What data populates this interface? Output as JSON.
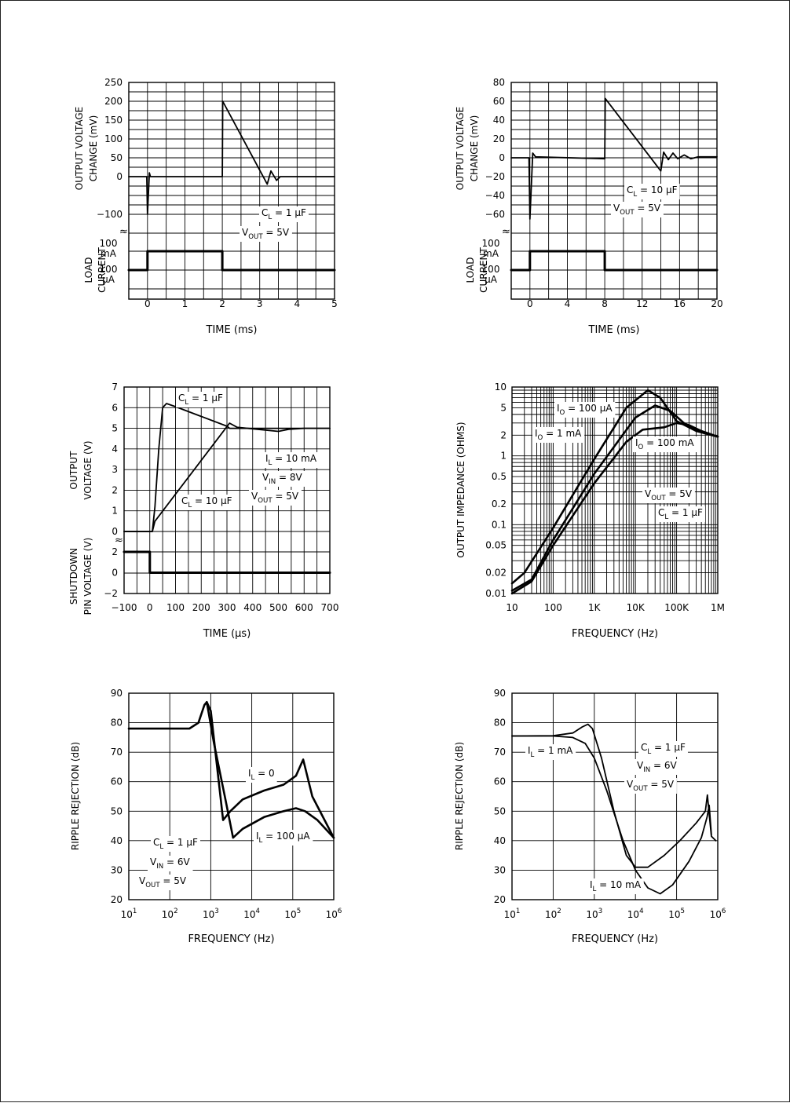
{
  "chart_data": [
    {
      "type": "line",
      "title": "",
      "xlabel": "TIME (ms)",
      "ylabel": "OUTPUT VOLTAGE CHANGE (mV)",
      "ylim": [
        -100,
        250
      ],
      "xlim": [
        -0.5,
        5
      ],
      "x_ticks": [
        "0",
        "1",
        "2",
        "3",
        "4",
        "5"
      ],
      "y_ticks": [
        "250",
        "200",
        "150",
        "100",
        "50",
        "0",
        "−100"
      ],
      "sub_label": "LOAD CURRENT",
      "sub_ticks": [
        "100 mA",
        "100 μA"
      ],
      "annotations": [
        "C_L = 1 μF",
        "V_OUT = 5V"
      ],
      "series": [
        {
          "values": [
            [
              -0.5,
              0
            ],
            [
              -0.02,
              0
            ],
            [
              0,
              -100
            ],
            [
              0.05,
              10
            ],
            [
              0.08,
              0
            ],
            [
              2,
              0
            ],
            [
              2.01,
              200
            ],
            [
              3.2,
              -20
            ],
            [
              3.3,
              15
            ],
            [
              3.45,
              -10
            ],
            [
              3.55,
              0
            ],
            [
              5,
              0
            ]
          ]
        },
        {
          "values": [
            [
              -0.5,
              0
            ],
            [
              0,
              0
            ],
            [
              0,
              1
            ],
            [
              2,
              1
            ],
            [
              2,
              0
            ],
            [
              5,
              0
            ]
          ]
        }
      ]
    },
    {
      "type": "line",
      "title": "",
      "xlabel": "TIME (ms)",
      "ylabel": "OUTPUT VOLTAGE CHANGE (mV)",
      "ylim": [
        -60,
        80
      ],
      "xlim": [
        -2,
        20
      ],
      "x_ticks": [
        "0",
        "4",
        "8",
        "12",
        "16",
        "20"
      ],
      "y_ticks": [
        "80",
        "60",
        "40",
        "20",
        "0",
        "−20",
        "−40",
        "−60"
      ],
      "sub_label": "LOAD CURRENT",
      "sub_ticks": [
        "100 mA",
        "100 μA"
      ],
      "annotations": [
        "C_L = 10 μF",
        "V_OUT = 5V"
      ],
      "series": [
        {
          "values": [
            [
              -2,
              0
            ],
            [
              -0.1,
              0
            ],
            [
              0,
              -65
            ],
            [
              0.3,
              5
            ],
            [
              0.6,
              1
            ],
            [
              8,
              -1
            ],
            [
              8.05,
              63
            ],
            [
              14,
              -14
            ],
            [
              14.3,
              6
            ],
            [
              14.8,
              -2
            ],
            [
              15.3,
              5
            ],
            [
              15.8,
              -1
            ],
            [
              16.5,
              3
            ],
            [
              17.2,
              -1
            ],
            [
              18,
              1
            ],
            [
              20,
              1
            ]
          ]
        },
        {
          "values": [
            [
              -2,
              0
            ],
            [
              0,
              0
            ],
            [
              0,
              1
            ],
            [
              8,
              1
            ],
            [
              8,
              0
            ],
            [
              20,
              0
            ]
          ]
        }
      ]
    },
    {
      "type": "line",
      "title": "",
      "xlabel": "TIME (μs)",
      "ylabel": "OUTPUT VOLTAGE (V)",
      "ylim": [
        0,
        7
      ],
      "xlim": [
        -100,
        700
      ],
      "x_ticks": [
        "−100",
        "0",
        "100",
        "200",
        "300",
        "400",
        "500",
        "600",
        "700"
      ],
      "y_ticks": [
        "7",
        "6",
        "5",
        "4",
        "3",
        "2",
        "1",
        "0"
      ],
      "sub_label": "SHUTDOWN PIN VOLTAGE (V)",
      "sub_ticks": [
        "2",
        "0",
        "−2"
      ],
      "annotations": [
        "C_L = 1 μF",
        "C_L = 10 μF",
        "I_L = 10 mA",
        "V_IN = 8V",
        "V_OUT = 5V"
      ],
      "series": [
        {
          "name": "C_L = 1 μF",
          "values": [
            [
              -100,
              0
            ],
            [
              10,
              0
            ],
            [
              20,
              1.2
            ],
            [
              35,
              4
            ],
            [
              50,
              6
            ],
            [
              65,
              6.2
            ],
            [
              100,
              6.05
            ],
            [
              300,
              5.1
            ],
            [
              310,
              5.0
            ],
            [
              700,
              5.0
            ]
          ]
        },
        {
          "name": "C_L = 10 μF",
          "values": [
            [
              -100,
              0
            ],
            [
              10,
              0
            ],
            [
              20,
              0.5
            ],
            [
              280,
              4.75
            ],
            [
              310,
              5.25
            ],
            [
              340,
              5.05
            ],
            [
              500,
              4.85
            ],
            [
              540,
              4.95
            ],
            [
              600,
              5.0
            ],
            [
              700,
              5.0
            ]
          ]
        },
        {
          "name": "SHUTDOWN",
          "values": [
            [
              -100,
              2
            ],
            [
              0,
              2
            ],
            [
              0,
              0
            ],
            [
              700,
              0
            ]
          ]
        }
      ]
    },
    {
      "type": "line",
      "title": "",
      "xlabel": "FREQUENCY (Hz)",
      "ylabel": "OUTPUT IMPEDANCE (OHMS)",
      "log_x": true,
      "log_y": true,
      "xlim": [
        10,
        1000000
      ],
      "ylim": [
        0.01,
        10
      ],
      "x_ticks": [
        "10",
        "100",
        "1K",
        "10K",
        "100K",
        "1M"
      ],
      "y_ticks": [
        "10",
        "5",
        "2",
        "1",
        "0.5",
        "0.2",
        "0.1",
        "0.05",
        "0.02",
        "0.01"
      ],
      "annotations": [
        "I_O = 100 μA",
        "I_O = 1 mA",
        "I_O = 100 mA",
        "V_OUT = 5V",
        "C_L = 1 μF"
      ],
      "series": [
        {
          "name": "I_O = 100 μA",
          "values": [
            [
              10,
              0.014
            ],
            [
              20,
              0.02
            ],
            [
              100,
              0.09
            ],
            [
              1000,
              0.9
            ],
            [
              6000,
              5
            ],
            [
              20000,
              9
            ],
            [
              40000,
              7
            ],
            [
              100000,
              3.2
            ],
            [
              300000,
              2.3
            ],
            [
              1000000,
              1.9
            ]
          ]
        },
        {
          "name": "I_O = 1 mA",
          "values": [
            [
              10,
              0.011
            ],
            [
              30,
              0.016
            ],
            [
              100,
              0.06
            ],
            [
              1000,
              0.55
            ],
            [
              10000,
              3.6
            ],
            [
              30000,
              5.4
            ],
            [
              70000,
              4.5
            ],
            [
              150000,
              3
            ],
            [
              400000,
              2.2
            ],
            [
              1000000,
              1.9
            ]
          ]
        },
        {
          "name": "I_O = 100 mA",
          "values": [
            [
              10,
              0.01
            ],
            [
              30,
              0.015
            ],
            [
              100,
              0.05
            ],
            [
              1000,
              0.4
            ],
            [
              6000,
              1.6
            ],
            [
              15000,
              2.4
            ],
            [
              50000,
              2.6
            ],
            [
              100000,
              3.0
            ],
            [
              200000,
              2.8
            ],
            [
              400000,
              2.3
            ],
            [
              1000000,
              1.9
            ]
          ]
        }
      ]
    },
    {
      "type": "line",
      "title": "",
      "xlabel": "FREQUENCY (Hz)",
      "ylabel": "RIPPLE REJECTION (dB)",
      "log_x": true,
      "xlim": [
        10,
        1000000
      ],
      "ylim": [
        20,
        90
      ],
      "x_ticks": [
        "10^1",
        "10^2",
        "10^3",
        "10^4",
        "10^5",
        "10^6"
      ],
      "y_ticks": [
        "90",
        "80",
        "70",
        "60",
        "50",
        "40",
        "30",
        "20"
      ],
      "annotations": [
        "I_L = 0",
        "I_L = 100 μA",
        "C_L = 1 μF",
        "V_IN = 6V",
        "V_OUT = 5V"
      ],
      "series": [
        {
          "name": "I_L = 0",
          "values": [
            [
              10,
              78
            ],
            [
              300,
              78
            ],
            [
              500,
              80
            ],
            [
              700,
              86
            ],
            [
              800,
              87
            ],
            [
              1000,
              84
            ],
            [
              2000,
              47
            ],
            [
              3000,
              50
            ],
            [
              6000,
              54
            ],
            [
              20000,
              57
            ],
            [
              60000,
              59
            ],
            [
              120000,
              62
            ],
            [
              180000,
              67.5
            ],
            [
              300000,
              55
            ],
            [
              1000000,
              41
            ]
          ]
        },
        {
          "name": "I_L = 100 μA",
          "values": [
            [
              800,
              87
            ],
            [
              1200,
              73
            ],
            [
              2200,
              55
            ],
            [
              3500,
              41
            ],
            [
              6000,
              44
            ],
            [
              20000,
              48
            ],
            [
              60000,
              50
            ],
            [
              120000,
              51
            ],
            [
              200000,
              50
            ],
            [
              400000,
              47
            ],
            [
              1000000,
              41
            ]
          ]
        }
      ]
    },
    {
      "type": "line",
      "title": "",
      "xlabel": "FREQUENCY (Hz)",
      "ylabel": "RIPPLE REJECTION (dB)",
      "log_x": true,
      "xlim": [
        10,
        1000000
      ],
      "ylim": [
        20,
        90
      ],
      "x_ticks": [
        "10^1",
        "10^2",
        "10^3",
        "10^4",
        "10^5",
        "10^6"
      ],
      "y_ticks": [
        "90",
        "80",
        "70",
        "60",
        "50",
        "40",
        "30",
        "20"
      ],
      "annotations": [
        "I_L = 1 mA",
        "I_L = 10 mA",
        "C_L = 1 μF",
        "V_IN = 6V",
        "V_OUT = 5V"
      ],
      "series": [
        {
          "name": "I_L = 1 mA",
          "values": [
            [
              10,
              75.5
            ],
            [
              100,
              75.6
            ],
            [
              300,
              76.5
            ],
            [
              500,
              78.5
            ],
            [
              700,
              79.5
            ],
            [
              900,
              78
            ],
            [
              1500,
              68
            ],
            [
              3000,
              50
            ],
            [
              6000,
              35
            ],
            [
              10000,
              31
            ],
            [
              20000,
              31
            ],
            [
              50000,
              35
            ],
            [
              120000,
              40
            ],
            [
              300000,
              46
            ],
            [
              500000,
              50
            ],
            [
              560000,
              55.5
            ],
            [
              620000,
              49
            ],
            [
              700000,
              41.5
            ],
            [
              900000,
              40
            ]
          ]
        },
        {
          "name": "I_L = 10 mA",
          "values": [
            [
              10,
              75.5
            ],
            [
              100,
              75.5
            ],
            [
              300,
              75
            ],
            [
              600,
              73
            ],
            [
              1000,
              68
            ],
            [
              2000,
              57
            ],
            [
              5000,
              40
            ],
            [
              10000,
              30
            ],
            [
              20000,
              24
            ],
            [
              40000,
              22
            ],
            [
              80000,
              25
            ],
            [
              200000,
              33
            ],
            [
              400000,
              41
            ],
            [
              550000,
              48
            ],
            [
              620000,
              52
            ],
            [
              700000,
              42
            ]
          ]
        }
      ]
    }
  ]
}
